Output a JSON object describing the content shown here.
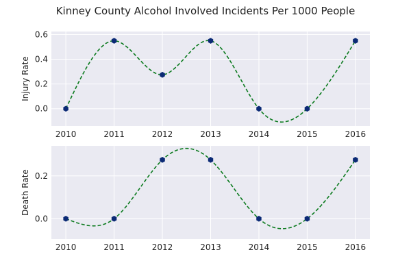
{
  "figure": {
    "title": "Kinney County Alcohol Involved Incidents Per 1000 People"
  },
  "chart_data": [
    {
      "type": "line",
      "ylabel": "Injury Rate",
      "x": [
        2010,
        2011,
        2012,
        2013,
        2014,
        2015,
        2016
      ],
      "y": [
        0.0,
        0.55,
        0.275,
        0.55,
        0.0,
        0.0,
        0.55
      ],
      "xticks": [
        "2010",
        "2011",
        "2012",
        "2013",
        "2014",
        "2015",
        "2016"
      ],
      "yticks": [
        "0.0",
        "0.2",
        "0.4",
        "0.6"
      ],
      "xlim": [
        2009.7,
        2016.3
      ],
      "ylim": [
        -0.14,
        0.625
      ],
      "grid": true,
      "line_style": "dashed smooth curve",
      "line_color": "#0b7a1e",
      "marker": "hexagon",
      "marker_color": "#0b2a75",
      "background": "#eaeaf2"
    },
    {
      "type": "line",
      "ylabel": "Death Rate",
      "x": [
        2010,
        2011,
        2012,
        2013,
        2014,
        2015,
        2016
      ],
      "y": [
        0.0,
        0.0,
        0.275,
        0.275,
        0.0,
        0.0,
        0.275
      ],
      "xticks": [
        "2010",
        "2011",
        "2012",
        "2013",
        "2014",
        "2015",
        "2016"
      ],
      "yticks": [
        "0.0",
        "0.2"
      ],
      "xlim": [
        2009.7,
        2016.3
      ],
      "ylim": [
        -0.095,
        0.34
      ],
      "grid": true,
      "line_style": "dashed smooth curve",
      "line_color": "#0b7a1e",
      "marker": "hexagon",
      "marker_color": "#0b2a75",
      "background": "#eaeaf2"
    }
  ]
}
